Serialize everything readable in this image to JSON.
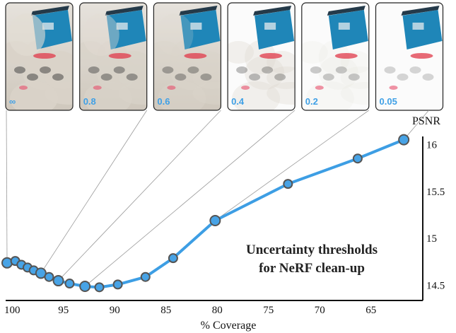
{
  "chart_data": {
    "type": "line",
    "xlabel": "% Coverage",
    "ylabel": "PSNR",
    "xlim": [
      100.5,
      60.5
    ],
    "ylim": [
      14.43,
      16.1
    ],
    "x_reversed": true,
    "x_ticks": [
      "100",
      "95",
      "90",
      "85",
      "80",
      "75",
      "70",
      "65"
    ],
    "x_tick_values": [
      100,
      95,
      90,
      85,
      80,
      75,
      70,
      65
    ],
    "y_ticks": [
      "16",
      "15.5",
      "15",
      "14.5"
    ],
    "y_tick_values": [
      16,
      15.5,
      15,
      14.5
    ],
    "y_axis_side": "right",
    "grid": false,
    "series_color": "#3d9ee4",
    "marker_color": "#47a3e6",
    "marker_edge_color": "#555555",
    "x": [
      100.5,
      99.7,
      99.1,
      98.5,
      97.9,
      97.2,
      96.4,
      95.5,
      94.4,
      92.9,
      91.5,
      89.7,
      87.0,
      84.3,
      80.2,
      73.1,
      66.3,
      61.8
    ],
    "y": [
      14.74,
      14.76,
      14.72,
      14.69,
      14.66,
      14.63,
      14.59,
      14.55,
      14.52,
      14.49,
      14.48,
      14.51,
      14.59,
      14.79,
      15.19,
      15.58,
      15.85,
      16.05
    ],
    "annotation": [
      "Uncertainty thresholds",
      "for NeRF clean-up"
    ],
    "thumbnails": [
      {
        "label": "∞",
        "point_index": 0
      },
      {
        "label": "0.8",
        "point_index": 5
      },
      {
        "label": "0.6",
        "point_index": 7
      },
      {
        "label": "0.4",
        "point_index": 9
      },
      {
        "label": "0.2",
        "point_index": 14
      },
      {
        "label": "0.05",
        "point_index": 17
      }
    ]
  }
}
